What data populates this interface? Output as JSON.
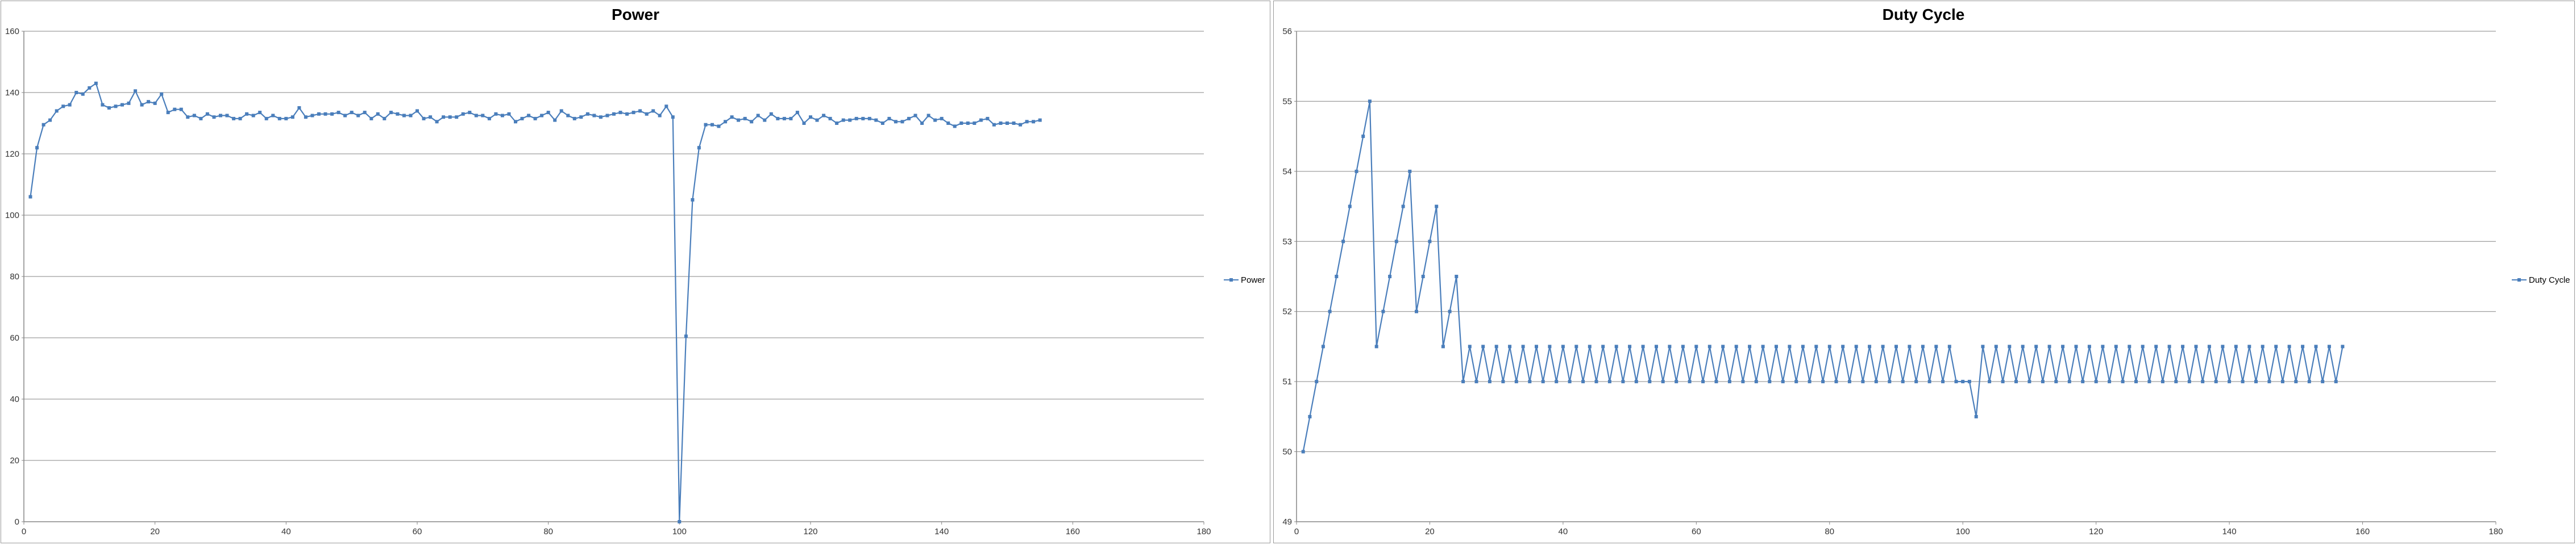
{
  "colors": {
    "series": "#4a7ebb",
    "grid": "#868686",
    "axis": "#868686",
    "frame": "#9a9a9a"
  },
  "chart_data": [
    {
      "type": "line",
      "title": "Power",
      "xlabel": "",
      "ylabel": "",
      "xlim": [
        0,
        180
      ],
      "ylim": [
        0,
        160
      ],
      "xticks": [
        0,
        20,
        40,
        60,
        80,
        100,
        120,
        140,
        160,
        180
      ],
      "yticks": [
        0,
        20,
        40,
        60,
        80,
        100,
        120,
        140,
        160
      ],
      "grid": "horizontal",
      "legend": "right",
      "series": [
        {
          "name": "Power",
          "x_start": 1,
          "x_step": 1,
          "values": [
            106,
            122,
            129.5,
            131,
            134,
            135.5,
            136,
            140,
            139.5,
            141.5,
            143,
            136,
            135,
            135.5,
            136,
            136.5,
            140.5,
            136,
            137,
            136.5,
            139.5,
            133.5,
            134.5,
            134.5,
            132,
            132.5,
            131.5,
            133,
            132,
            132.5,
            132.5,
            131.5,
            131.5,
            133,
            132.5,
            133.5,
            131.5,
            132.5,
            131.5,
            131.5,
            132,
            135,
            132,
            132.5,
            133,
            133,
            133,
            133.5,
            132.5,
            133.5,
            132.5,
            133.5,
            131.5,
            133,
            131.5,
            133.5,
            133,
            132.5,
            132.5,
            134,
            131.5,
            132,
            130.5,
            132,
            132,
            132,
            133,
            133.5,
            132.5,
            132.5,
            131.5,
            133,
            132.5,
            133,
            130.5,
            131.5,
            132.5,
            131.5,
            132.5,
            133.5,
            131,
            134,
            132.5,
            131.5,
            132,
            133,
            132.5,
            132,
            132.5,
            133,
            133.5,
            133,
            133.5,
            134,
            133,
            134,
            132.5,
            135.5,
            132,
            0,
            60.5,
            105,
            122,
            129.5,
            129.5,
            129,
            130.5,
            132,
            131,
            131.5,
            130.5,
            132.5,
            131,
            133,
            131.5,
            131.5,
            131.5,
            133.5,
            130,
            132,
            131,
            132.5,
            131.5,
            130,
            131,
            131,
            131.5,
            131.5,
            131.5,
            131,
            130,
            131.5,
            130.5,
            130.5,
            131.5,
            132.5,
            130,
            132.5,
            131,
            131.5,
            130,
            129,
            130,
            130,
            130,
            131,
            131.5,
            129.5,
            130,
            130,
            130,
            129.5,
            130.5,
            130.5,
            131
          ]
        }
      ]
    },
    {
      "type": "line",
      "title": "Duty Cycle",
      "xlabel": "",
      "ylabel": "",
      "xlim": [
        0,
        180
      ],
      "ylim": [
        49,
        56
      ],
      "xticks": [
        0,
        20,
        40,
        60,
        80,
        100,
        120,
        140,
        160,
        180
      ],
      "yticks": [
        49,
        50,
        51,
        52,
        53,
        54,
        55,
        56
      ],
      "grid": "horizontal",
      "legend": "right",
      "series": [
        {
          "name": "Duty Cycle",
          "x_start": 1,
          "x_step": 1,
          "values": [
            50,
            50.5,
            51,
            51.5,
            52,
            52.5,
            53,
            53.5,
            54,
            54.5,
            55,
            51.5,
            52,
            52.5,
            53,
            53.5,
            54,
            52,
            52.5,
            53,
            53.5,
            51.5,
            52,
            52.5,
            51,
            51.5,
            51,
            51.5,
            51,
            51.5,
            51,
            51.5,
            51,
            51.5,
            51,
            51.5,
            51,
            51.5,
            51,
            51.5,
            51,
            51.5,
            51,
            51.5,
            51,
            51.5,
            51,
            51.5,
            51,
            51.5,
            51,
            51.5,
            51,
            51.5,
            51,
            51.5,
            51,
            51.5,
            51,
            51.5,
            51,
            51.5,
            51,
            51.5,
            51,
            51.5,
            51,
            51.5,
            51,
            51.5,
            51,
            51.5,
            51,
            51.5,
            51,
            51.5,
            51,
            51.5,
            51,
            51.5,
            51,
            51.5,
            51,
            51.5,
            51,
            51.5,
            51,
            51.5,
            51,
            51.5,
            51,
            51.5,
            51,
            51.5,
            51,
            51.5,
            51,
            51.5,
            51,
            51,
            51,
            50.5,
            51.5,
            51,
            51.5,
            51,
            51.5,
            51,
            51.5,
            51,
            51.5,
            51,
            51.5,
            51,
            51.5,
            51,
            51.5,
            51,
            51.5,
            51,
            51.5,
            51,
            51.5,
            51,
            51.5,
            51,
            51.5,
            51,
            51.5,
            51,
            51.5,
            51,
            51.5,
            51,
            51.5,
            51,
            51.5,
            51,
            51.5,
            51,
            51.5,
            51,
            51.5,
            51,
            51.5,
            51,
            51.5,
            51,
            51.5,
            51,
            51.5,
            51,
            51.5,
            51,
            51.5,
            51,
            51.5
          ]
        }
      ]
    }
  ]
}
